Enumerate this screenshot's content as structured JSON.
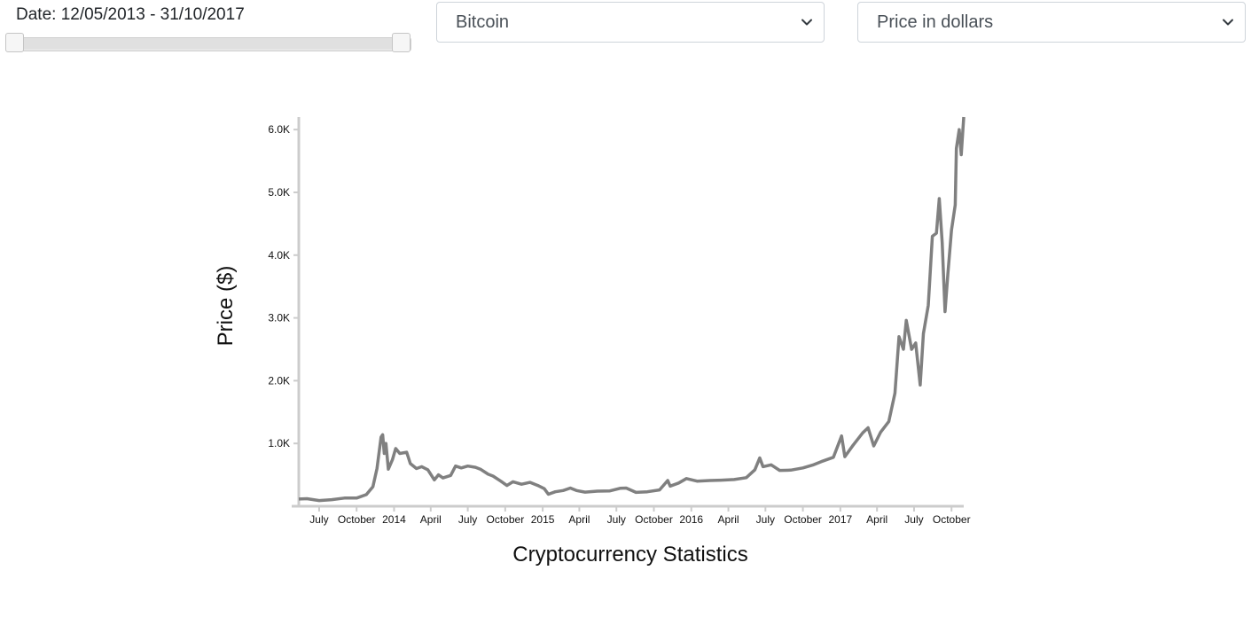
{
  "controls": {
    "date_label": "Date: 12/05/2013 - 31/10/2017",
    "currency_select": {
      "value": "Bitcoin"
    },
    "metric_select": {
      "value": "Price in dollars"
    }
  },
  "chart_data": {
    "type": "line",
    "title": "",
    "xlabel": "Cryptocurrency Statistics",
    "ylabel": "Price ($)",
    "y_tick_labels": [
      "1.0K",
      "2.0K",
      "3.0K",
      "4.0K",
      "5.0K",
      "6.0K"
    ],
    "x_tick_labels": [
      "July",
      "October",
      "2014",
      "April",
      "July",
      "October",
      "2015",
      "April",
      "July",
      "October",
      "2016",
      "April",
      "July",
      "October",
      "2017",
      "April",
      "July",
      "October"
    ],
    "ylim": [
      0,
      6200
    ],
    "grid": false,
    "line_color": "#808080",
    "series": [
      {
        "name": "Bitcoin",
        "points": [
          [
            "2013-05-12",
            115
          ],
          [
            "2013-06-01",
            120
          ],
          [
            "2013-07-01",
            90
          ],
          [
            "2013-08-01",
            105
          ],
          [
            "2013-09-01",
            130
          ],
          [
            "2013-10-01",
            130
          ],
          [
            "2013-10-25",
            185
          ],
          [
            "2013-11-10",
            310
          ],
          [
            "2013-11-20",
            600
          ],
          [
            "2013-11-30",
            1100
          ],
          [
            "2013-12-04",
            1140
          ],
          [
            "2013-12-08",
            840
          ],
          [
            "2013-12-12",
            1000
          ],
          [
            "2013-12-18",
            590
          ],
          [
            "2013-12-28",
            740
          ],
          [
            "2014-01-05",
            920
          ],
          [
            "2014-01-15",
            840
          ],
          [
            "2014-02-01",
            860
          ],
          [
            "2014-02-10",
            680
          ],
          [
            "2014-02-25",
            600
          ],
          [
            "2014-03-10",
            630
          ],
          [
            "2014-03-25",
            580
          ],
          [
            "2014-04-10",
            420
          ],
          [
            "2014-04-20",
            500
          ],
          [
            "2014-05-01",
            450
          ],
          [
            "2014-05-20",
            490
          ],
          [
            "2014-06-01",
            640
          ],
          [
            "2014-06-15",
            610
          ],
          [
            "2014-07-01",
            640
          ],
          [
            "2014-07-20",
            620
          ],
          [
            "2014-08-01",
            590
          ],
          [
            "2014-08-20",
            510
          ],
          [
            "2014-09-01",
            480
          ],
          [
            "2014-09-20",
            400
          ],
          [
            "2014-10-05",
            330
          ],
          [
            "2014-10-20",
            390
          ],
          [
            "2014-11-10",
            350
          ],
          [
            "2014-12-01",
            380
          ],
          [
            "2014-12-20",
            330
          ],
          [
            "2015-01-05",
            280
          ],
          [
            "2015-01-15",
            190
          ],
          [
            "2015-02-01",
            230
          ],
          [
            "2015-02-20",
            250
          ],
          [
            "2015-03-10",
            290
          ],
          [
            "2015-03-25",
            250
          ],
          [
            "2015-04-15",
            225
          ],
          [
            "2015-05-15",
            240
          ],
          [
            "2015-06-15",
            245
          ],
          [
            "2015-07-10",
            285
          ],
          [
            "2015-07-25",
            290
          ],
          [
            "2015-08-18",
            220
          ],
          [
            "2015-09-15",
            230
          ],
          [
            "2015-10-15",
            260
          ],
          [
            "2015-11-04",
            410
          ],
          [
            "2015-11-10",
            320
          ],
          [
            "2015-12-01",
            370
          ],
          [
            "2015-12-20",
            440
          ],
          [
            "2016-01-15",
            400
          ],
          [
            "2016-02-15",
            410
          ],
          [
            "2016-03-15",
            415
          ],
          [
            "2016-04-15",
            425
          ],
          [
            "2016-05-15",
            455
          ],
          [
            "2016-06-05",
            580
          ],
          [
            "2016-06-17",
            770
          ],
          [
            "2016-06-25",
            630
          ],
          [
            "2016-07-15",
            660
          ],
          [
            "2016-08-05",
            570
          ],
          [
            "2016-09-01",
            575
          ],
          [
            "2016-10-01",
            610
          ],
          [
            "2016-10-25",
            655
          ],
          [
            "2016-11-15",
            710
          ],
          [
            "2016-12-15",
            780
          ],
          [
            "2017-01-04",
            1120
          ],
          [
            "2017-01-12",
            790
          ],
          [
            "2017-02-01",
            970
          ],
          [
            "2017-02-25",
            1170
          ],
          [
            "2017-03-10",
            1250
          ],
          [
            "2017-03-24",
            960
          ],
          [
            "2017-04-10",
            1180
          ],
          [
            "2017-04-30",
            1350
          ],
          [
            "2017-05-15",
            1800
          ],
          [
            "2017-05-25",
            2700
          ],
          [
            "2017-06-05",
            2500
          ],
          [
            "2017-06-12",
            2960
          ],
          [
            "2017-06-25",
            2500
          ],
          [
            "2017-07-05",
            2600
          ],
          [
            "2017-07-16",
            1930
          ],
          [
            "2017-07-24",
            2750
          ],
          [
            "2017-08-05",
            3200
          ],
          [
            "2017-08-15",
            4300
          ],
          [
            "2017-08-25",
            4350
          ],
          [
            "2017-09-01",
            4900
          ],
          [
            "2017-09-08",
            4200
          ],
          [
            "2017-09-15",
            3100
          ],
          [
            "2017-09-22",
            3700
          ],
          [
            "2017-10-01",
            4400
          ],
          [
            "2017-10-10",
            4800
          ],
          [
            "2017-10-13",
            5700
          ],
          [
            "2017-10-20",
            6000
          ],
          [
            "2017-10-25",
            5600
          ],
          [
            "2017-10-31",
            6200
          ]
        ]
      }
    ]
  }
}
